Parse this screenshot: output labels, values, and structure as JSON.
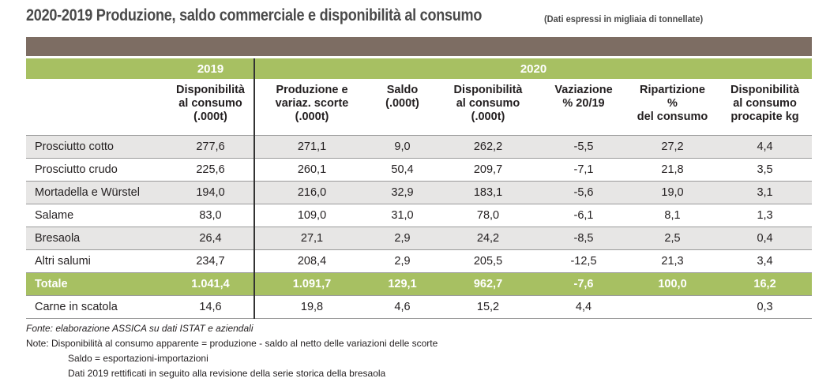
{
  "title": {
    "main": "2020-2019 Produzione, saldo commerciale e disponibilità al consumo",
    "sub": "(Dati espressi in migliaia di tonnellate)"
  },
  "years": {
    "y2019": "2019",
    "y2020": "2020"
  },
  "headers": [
    [
      "Disponibilità",
      "al consumo",
      "(.000t)"
    ],
    [
      "Produzione e",
      "variaz. scorte",
      "(.000t)"
    ],
    [
      "Saldo",
      "(.000t)"
    ],
    [
      "Disponibilità",
      "al consumo",
      "(.000t)"
    ],
    [
      "Vaziazione",
      "% 20/19"
    ],
    [
      "Ripartizione",
      "%",
      "del consumo"
    ],
    [
      "Disponibilità",
      "al consumo",
      "procapite kg"
    ]
  ],
  "rows": [
    {
      "name": "Prosciutto cotto",
      "values": [
        "277,6",
        "271,1",
        "9,0",
        "262,2",
        "-5,5",
        "27,2",
        "4,4"
      ]
    },
    {
      "name": "Prosciutto crudo",
      "values": [
        "225,6",
        "260,1",
        "50,4",
        "209,7",
        "-7,1",
        "21,8",
        "3,5"
      ]
    },
    {
      "name": "Mortadella e Würstel",
      "values": [
        "194,0",
        "216,0",
        "32,9",
        "183,1",
        "-5,6",
        "19,0",
        "3,1"
      ]
    },
    {
      "name": "Salame",
      "values": [
        "83,0",
        "109,0",
        "31,0",
        "78,0",
        "-6,1",
        "8,1",
        "1,3"
      ]
    },
    {
      "name": "Bresaola",
      "values": [
        "26,4",
        "27,1",
        "2,9",
        "24,2",
        "-8,5",
        "2,5",
        "0,4"
      ]
    },
    {
      "name": "Altri salumi",
      "values": [
        "234,7",
        "208,4",
        "2,9",
        "205,5",
        "-12,5",
        "21,3",
        "3,4"
      ]
    }
  ],
  "total": {
    "name": "Totale",
    "values": [
      "1.041,4",
      "1.091,7",
      "129,1",
      "962,7",
      "-7,6",
      "100,0",
      "16,2"
    ]
  },
  "extra": {
    "name": "Carne in scatola",
    "values": [
      "14,6",
      "19,8",
      "4,6",
      "15,2",
      "4,4",
      "",
      "0,3"
    ]
  },
  "notes": {
    "source": "Fonte: elaborazione ASSICA su dati ISTAT e aziendali",
    "note1": "Note: Disponibilità al consumo apparente = produzione - saldo al netto delle variazioni delle scorte",
    "note2": "Saldo = esportazioni-importazioni",
    "note3": "Dati 2019  rettificati in seguito alla revisione della serie storica della bresaola"
  },
  "colors": {
    "green": "#a7c062",
    "brown": "#7d6d63",
    "shade": "#e7e6e5"
  }
}
